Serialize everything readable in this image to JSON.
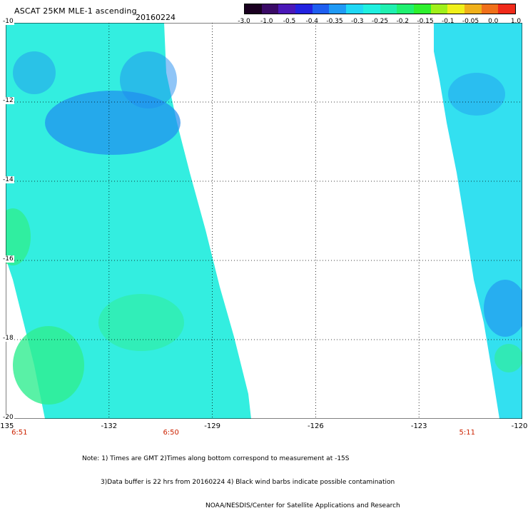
{
  "header": {
    "title": "ASCAT 25KM MLE-1 ascending",
    "date": "20160224"
  },
  "colorbar": {
    "colors": [
      "#1a0020",
      "#3a0a66",
      "#4a18b8",
      "#2222e0",
      "#1e5ef0",
      "#1f9af5",
      "#1fd8f5",
      "#1ff0e0",
      "#1ff0b0",
      "#1ff070",
      "#2ef02e",
      "#a0f01a",
      "#f0f01a",
      "#f0b01a",
      "#f0701a",
      "#f02a1a"
    ],
    "ticks": [
      "-3.0",
      "-1.0",
      "-0.5",
      "-0.4",
      "-0.35",
      "-0.3",
      "-0.25",
      "-0.2",
      "-0.15",
      "-0.1",
      "-0.05",
      "0.0",
      "1.0"
    ]
  },
  "axes": {
    "lat_labels": [
      "-10",
      "-12",
      "-14",
      "-16",
      "-18",
      "-20"
    ],
    "lon_labels": [
      "-135",
      "-132",
      "-129",
      "-126",
      "-123",
      "-120"
    ],
    "lat_range": [
      -20,
      -10
    ],
    "lon_range": [
      -135,
      -120
    ],
    "grid": true
  },
  "times": [
    {
      "lon": -134.6,
      "label": "6:51"
    },
    {
      "lon": -130.2,
      "label": "6:50"
    },
    {
      "lon": -121.6,
      "label": "5:11"
    }
  ],
  "notes": {
    "line1": "Note: 1) Times are GMT 2)Times along bottom correspond to measurement at -15S",
    "line2": "3)Data buffer is 22 hrs from 20160224 4) Black wind barbs indicate possible contamination",
    "line3": "NOAA/NESDIS/Center for Satellite Applications and Research"
  },
  "swaths": {
    "west_fill": "#33eee0",
    "east_fill": "#33e0f0",
    "blue_patch": "#1f8cf0",
    "green_patch": "#30ee90"
  }
}
